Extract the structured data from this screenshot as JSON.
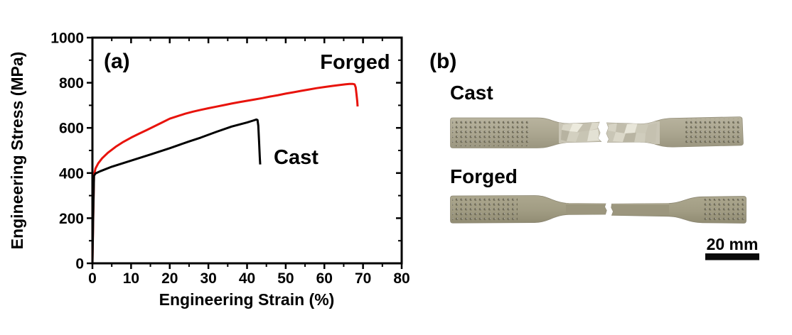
{
  "figure": {
    "colors": {
      "red": "#e8130c",
      "black": "#000000",
      "specimen_body": "#aba692",
      "specimen_forged_body": "#a19c83",
      "cast_gauge_crumpled": "#c9c5b5",
      "dot_color": "#6d6955"
    },
    "panel_a": {
      "label": "(a)"
    },
    "panel_b": {
      "label": "(b)",
      "specimens": [
        {
          "label": "Cast",
          "condition": "fractured tensile specimen, crumpled gauge section"
        },
        {
          "label": "Forged",
          "condition": "fractured tensile specimen, smooth elongated gauge section"
        }
      ],
      "scale_bar_label": "20 mm"
    }
  },
  "chart_data": {
    "type": "line",
    "title": "",
    "xlabel": "Engineering Strain (%)",
    "ylabel": "Engineering Stress (MPa)",
    "xlim": [
      0,
      80
    ],
    "ylim": [
      0,
      1000
    ],
    "xticks": [
      0,
      10,
      20,
      30,
      40,
      50,
      60,
      70,
      80
    ],
    "yticks": [
      0,
      200,
      400,
      600,
      800,
      1000
    ],
    "x_minor_ticks": [
      5,
      15,
      25,
      35,
      45,
      55,
      65,
      75
    ],
    "y_minor_ticks": [
      100,
      300,
      500,
      700,
      900
    ],
    "grid": false,
    "legend": "in-plot text labels",
    "series": [
      {
        "name": "Forged",
        "color": "#e8130c",
        "points": [
          [
            0,
            0
          ],
          [
            0.2,
            200
          ],
          [
            0.4,
            390
          ],
          [
            0.8,
            420
          ],
          [
            1.5,
            443
          ],
          [
            2.5,
            465
          ],
          [
            4,
            490
          ],
          [
            6,
            516
          ],
          [
            8,
            538
          ],
          [
            10,
            557
          ],
          [
            12,
            574
          ],
          [
            14,
            590
          ],
          [
            16,
            607
          ],
          [
            18,
            624
          ],
          [
            20,
            641
          ],
          [
            22,
            652
          ],
          [
            24,
            663
          ],
          [
            26,
            672
          ],
          [
            28,
            680
          ],
          [
            30,
            687
          ],
          [
            32,
            694
          ],
          [
            34,
            701
          ],
          [
            36,
            708
          ],
          [
            38,
            714
          ],
          [
            40,
            720
          ],
          [
            42,
            726
          ],
          [
            44,
            732
          ],
          [
            46,
            739
          ],
          [
            48,
            745
          ],
          [
            50,
            752
          ],
          [
            52,
            758
          ],
          [
            54,
            764
          ],
          [
            56,
            770
          ],
          [
            58,
            776
          ],
          [
            60,
            781
          ],
          [
            62,
            786
          ],
          [
            64,
            790
          ],
          [
            65.5,
            793
          ],
          [
            66.5,
            795
          ],
          [
            67.3,
            795
          ],
          [
            67.8,
            793
          ],
          [
            68.1,
            780
          ],
          [
            68.3,
            750
          ],
          [
            68.5,
            718
          ],
          [
            68.6,
            695
          ]
        ]
      },
      {
        "name": "Cast",
        "color": "#000000",
        "points": [
          [
            0,
            0
          ],
          [
            0.2,
            220
          ],
          [
            0.4,
            388
          ],
          [
            0.8,
            398
          ],
          [
            2,
            408
          ],
          [
            5,
            428
          ],
          [
            10,
            455
          ],
          [
            15,
            482
          ],
          [
            20,
            510
          ],
          [
            25,
            540
          ],
          [
            28,
            557
          ],
          [
            32,
            582
          ],
          [
            36,
            606
          ],
          [
            40,
            624
          ],
          [
            41.5,
            632
          ],
          [
            42.4,
            637
          ],
          [
            42.7,
            635
          ],
          [
            42.9,
            610
          ],
          [
            43.1,
            540
          ],
          [
            43.3,
            470
          ],
          [
            43.4,
            438
          ]
        ]
      }
    ],
    "annotations": [
      {
        "text": "Forged",
        "x": 58.9,
        "y": 861,
        "color": "#e8130c"
      },
      {
        "text": "Cast",
        "x": 46.9,
        "y": 440,
        "color": "#000000"
      }
    ]
  }
}
